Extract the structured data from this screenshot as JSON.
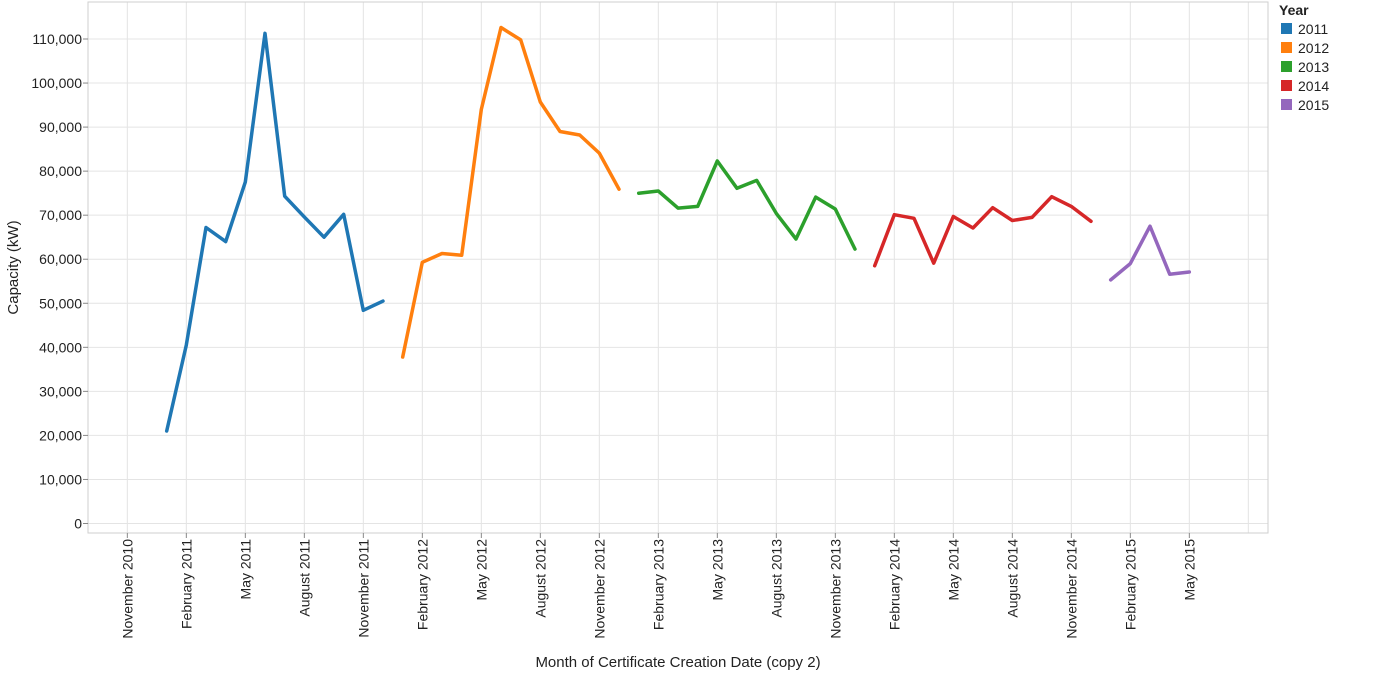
{
  "chart_data": {
    "type": "line",
    "xlabel": "Month of Certificate Creation Date (copy 2)",
    "ylabel": "Capacity (kW)",
    "ylim": [
      0,
      115000
    ],
    "y_ticks": [
      0,
      10000,
      20000,
      30000,
      40000,
      50000,
      60000,
      70000,
      80000,
      90000,
      100000,
      110000
    ],
    "y_tick_labels": [
      "0",
      "10,000",
      "20,000",
      "30,000",
      "40,000",
      "50,000",
      "60,000",
      "70,000",
      "80,000",
      "90,000",
      "100,000",
      "110,000"
    ],
    "xlim": [
      "2010-09",
      "2015-09"
    ],
    "x_ticks": [
      "2010-11",
      "2011-02",
      "2011-05",
      "2011-08",
      "2011-11",
      "2012-02",
      "2012-05",
      "2012-08",
      "2012-11",
      "2013-02",
      "2013-05",
      "2013-08",
      "2013-11",
      "2014-02",
      "2014-05",
      "2014-08",
      "2014-11",
      "2015-02",
      "2015-05"
    ],
    "x_tick_labels": [
      "November 2010",
      "February 2011",
      "May 2011",
      "August 2011",
      "November 2011",
      "February 2012",
      "May 2012",
      "August 2012",
      "November 2012",
      "February 2013",
      "May 2013",
      "August 2013",
      "November 2013",
      "February 2014",
      "May 2014",
      "August 2014",
      "November 2014",
      "February 2015",
      "May 2015"
    ],
    "grid": true,
    "legend": {
      "title": "Year",
      "position": "top-right"
    },
    "series": [
      {
        "name": "2011",
        "color": "#1f77b4",
        "x": [
          "2011-01",
          "2011-02",
          "2011-03",
          "2011-04",
          "2011-05",
          "2011-06",
          "2011-07",
          "2011-08",
          "2011-09",
          "2011-10",
          "2011-11",
          "2011-12"
        ],
        "y": [
          21000,
          40500,
          67200,
          64000,
          77500,
          111300,
          74300,
          69600,
          65000,
          70200,
          48400,
          50500
        ]
      },
      {
        "name": "2012",
        "color": "#ff7f0e",
        "x": [
          "2012-01",
          "2012-02",
          "2012-03",
          "2012-04",
          "2012-05",
          "2012-06",
          "2012-07",
          "2012-08",
          "2012-09",
          "2012-10",
          "2012-11",
          "2012-12"
        ],
        "y": [
          37800,
          59300,
          61300,
          60900,
          94000,
          112600,
          109800,
          95700,
          89000,
          88200,
          84100,
          75900
        ]
      },
      {
        "name": "2013",
        "color": "#2ca02c",
        "x": [
          "2013-01",
          "2013-02",
          "2013-03",
          "2013-04",
          "2013-05",
          "2013-06",
          "2013-07",
          "2013-08",
          "2013-09",
          "2013-10",
          "2013-11",
          "2013-12"
        ],
        "y": [
          75000,
          75500,
          71600,
          72000,
          82300,
          76100,
          77900,
          70400,
          64600,
          74100,
          71400,
          62300
        ]
      },
      {
        "name": "2014",
        "color": "#d62728",
        "x": [
          "2014-01",
          "2014-02",
          "2014-03",
          "2014-04",
          "2014-05",
          "2014-06",
          "2014-07",
          "2014-08",
          "2014-09",
          "2014-10",
          "2014-11",
          "2014-12"
        ],
        "y": [
          58500,
          70100,
          69300,
          59100,
          69700,
          67100,
          71700,
          68800,
          69500,
          74200,
          72000,
          68600
        ]
      },
      {
        "name": "2015",
        "color": "#9467bd",
        "x": [
          "2015-01",
          "2015-02",
          "2015-03",
          "2015-04",
          "2015-05"
        ],
        "y": [
          55300,
          59000,
          67500,
          56600,
          57100
        ]
      }
    ]
  }
}
